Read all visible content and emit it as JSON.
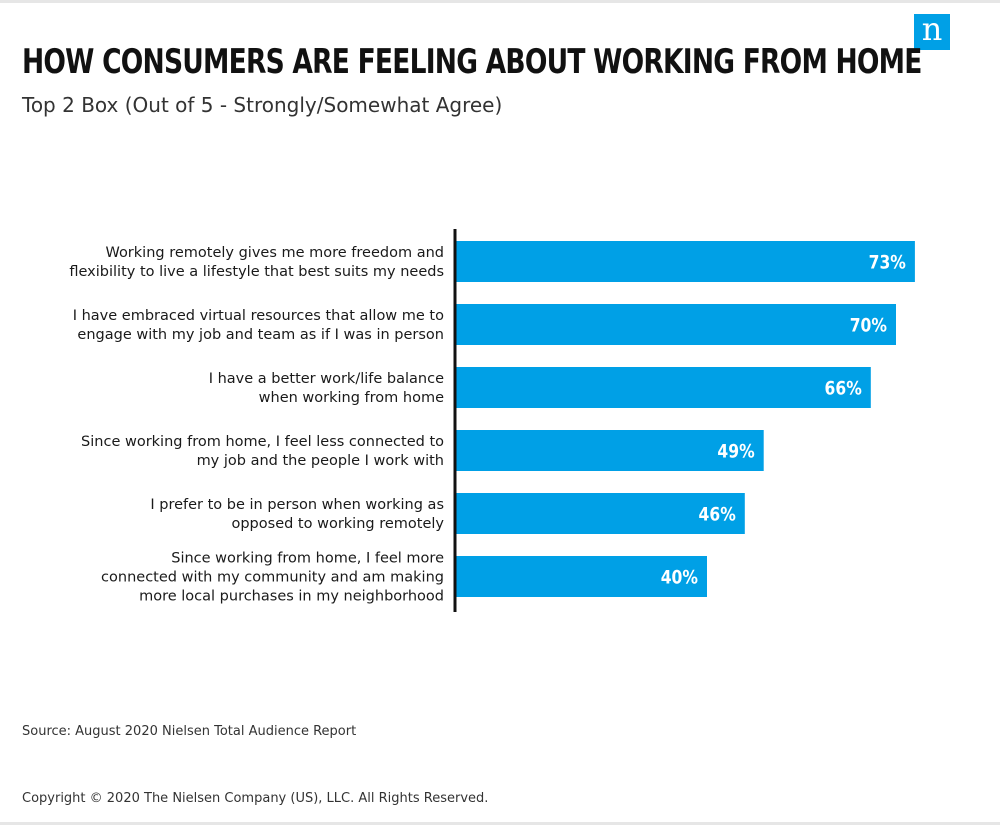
{
  "brand": {
    "logo_letter": "n",
    "accent_color": "#00a0e6",
    "icon": "nielsen-logo"
  },
  "header": {
    "title": "HOW CONSUMERS ARE FEELING ABOUT WORKING FROM HOME",
    "subtitle": "Top 2 Box (Out of 5 - Strongly/Somewhat Agree)"
  },
  "chart_data": {
    "type": "bar",
    "orientation": "horizontal",
    "categories": [
      [
        "Working remotely gives me more freedom and",
        "flexibility to live a lifestyle that best suits my needs"
      ],
      [
        "I have embraced virtual resources that allow me to",
        "engage with my job and team as if I was in person"
      ],
      [
        "I have a better work/life balance",
        "when working from home"
      ],
      [
        "Since working from home, I feel less connected to",
        "my job and the people I work with"
      ],
      [
        "I prefer to be in person when working as",
        "opposed to working remotely"
      ],
      [
        "Since working from home, I feel more",
        "connected with my community and am making",
        "more local purchases in my neighborhood"
      ]
    ],
    "values": [
      73,
      70,
      66,
      49,
      46,
      40
    ],
    "value_labels": [
      "73%",
      "70%",
      "66%",
      "49%",
      "46%",
      "40%"
    ],
    "bar_color": "#00a0e6",
    "grid": false,
    "legend": "none"
  },
  "footer": {
    "source": "Source: August 2020 Nielsen Total Audience Report",
    "copyright": "Copyright © 2020 The Nielsen Company (US), LLC. All Rights Reserved."
  }
}
